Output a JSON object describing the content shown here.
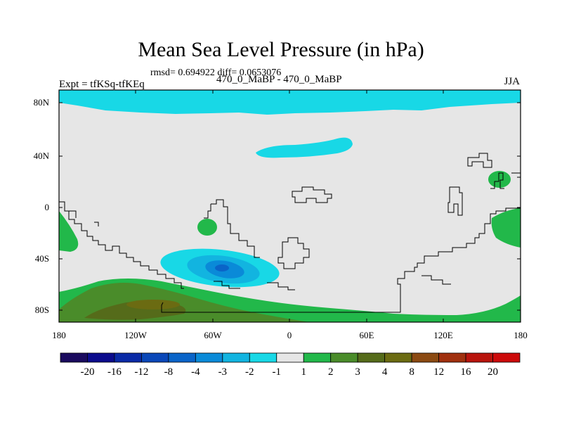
{
  "title": "Mean Sea Level Pressure (in hPa)",
  "subtitle": "rmsd= 0.694922 diff= 0.0653076",
  "experiment": "Expt = tfKSq-tfKEq",
  "center_label": "470_0_MaBP - 470_0_MaBP",
  "season": "JJA",
  "axes": {
    "y_ticks": [
      "80N",
      "40N",
      "0",
      "40S",
      "80S"
    ],
    "x_ticks": [
      "180",
      "120W",
      "60W",
      "0",
      "60E",
      "120E",
      "180"
    ]
  },
  "colorbar": {
    "labels": [
      "-20",
      "-16",
      "-12",
      "-8",
      "-4",
      "-3",
      "-2",
      "-1",
      "1",
      "2",
      "3",
      "4",
      "8",
      "12",
      "16",
      "20"
    ],
    "colors": [
      "#1a0a5e",
      "#0b0b8c",
      "#0a2aa6",
      "#0a47b8",
      "#0a64c8",
      "#0a8ad8",
      "#12b4e0",
      "#18d8e6",
      "#e6e6e6",
      "#22b84a",
      "#4a8c2a",
      "#556b1a",
      "#6b6b12",
      "#8b4a12",
      "#a0300e",
      "#b8140c",
      "#cc0a0a"
    ]
  },
  "colors": {
    "neutral": "#e6e6e6",
    "cyan": "#18d8e6",
    "light_blue": "#12b4e0",
    "mid_blue": "#0a8ad8",
    "blue": "#0a64c8",
    "green": "#22b84a",
    "olive": "#4a8c2a",
    "dark_olive": "#556b1a",
    "brown": "#6b6b12"
  }
}
